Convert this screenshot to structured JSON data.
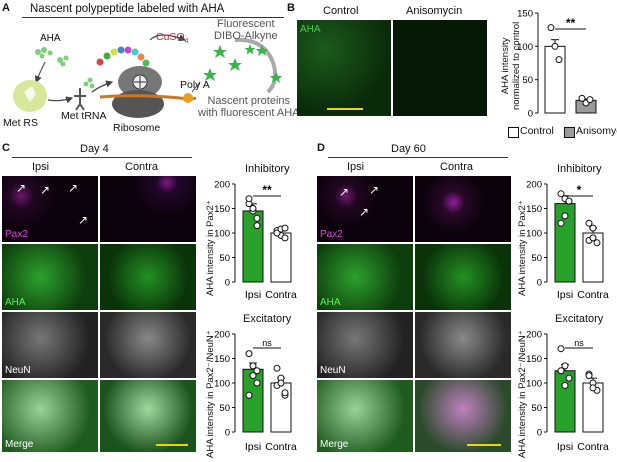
{
  "panels": {
    "A": "A",
    "B": "B",
    "C": "C",
    "D": "D"
  },
  "schematic": {
    "title": "Nascent polypeptide labeled with AHA",
    "aha": "AHA",
    "met_rs": "Met RS",
    "met_trna": "Met tRNA",
    "ribosome": "Ribosome",
    "poly_a": "Poly A",
    "cuso": "CuSO",
    "cuso_sub": "4",
    "dye_line1": "Fluorescent",
    "dye_line2": "DIBO-Alkyne",
    "nascent_line1": "Nascent proteins",
    "nascent_line2": "with fluorescent AHA"
  },
  "panelB": {
    "control": "Control",
    "anisomycin": "Anisomycin",
    "aha": "AHA",
    "ylabel1": "AHA intensity",
    "ylabel2": "normalized to control",
    "sig": "**",
    "legend": [
      "Control",
      "Anisomycin"
    ]
  },
  "panelC": {
    "day": "Day 4",
    "ipsi": "Ipsi",
    "contra": "Contra",
    "rows": [
      "Pax2",
      "AHA",
      "NeuN",
      "Merge"
    ],
    "inhibitory": "Inhibitory",
    "excitatory": "Excitatory",
    "ylabel_inh": "AHA intensity in Pax2⁺",
    "ylabel_exc": "AHA intensity in Pax2⁻/NeuN⁺",
    "sig_inh": "**",
    "sig_exc": "ns"
  },
  "panelD": {
    "day": "Day 60",
    "ipsi": "Ipsi",
    "contra": "Contra",
    "rows": [
      "Pax2",
      "AHA",
      "NeuN",
      "Merge"
    ],
    "inhibitory": "Inhibitory",
    "excitatory": "Excitatory",
    "ylabel_inh": "AHA intensity in Pax2⁺",
    "ylabel_exc": "AHA intensity in Pax2⁻/NeuN⁺",
    "sig_inh": "*",
    "sig_exc": "ns"
  },
  "colors": {
    "control_bar": "#ffffff",
    "anisomycin_bar": "#9a9a9a",
    "ipsi_bar": "#27a12a",
    "contra_bar": "#ffffff",
    "pax2": "#e020e0",
    "aha": "#3fd23f"
  },
  "chart_data": [
    {
      "id": "B",
      "type": "bar",
      "categories": [
        "Control",
        "Anisomycin"
      ],
      "values": [
        100,
        19
      ],
      "points": [
        [
          128,
          100,
          80
        ],
        [
          22,
          15,
          20
        ]
      ],
      "ylim": [
        0,
        150
      ],
      "yticks": [
        0,
        50,
        100,
        150
      ]
    },
    {
      "id": "C-inh",
      "type": "bar",
      "categories": [
        "Ipsi",
        "Contra"
      ],
      "values": [
        145,
        100
      ],
      "points": [
        [
          160,
          145,
          130,
          170,
          150,
          115
        ],
        [
          105,
          95,
          90,
          100,
          108,
          110
        ]
      ],
      "ylim": [
        0,
        200
      ],
      "yticks": [
        0,
        50,
        100,
        150,
        200
      ]
    },
    {
      "id": "C-exc",
      "type": "bar",
      "categories": [
        "Ipsi",
        "Contra"
      ],
      "values": [
        128,
        100
      ],
      "points": [
        [
          75,
          115,
          125,
          160,
          135,
          100
        ],
        [
          95,
          110,
          75,
          130,
          100,
          80
        ]
      ],
      "ylim": [
        0,
        200
      ],
      "yticks": [
        0,
        50,
        100,
        150,
        200
      ]
    },
    {
      "id": "D-inh",
      "type": "bar",
      "categories": [
        "Ipsi",
        "Contra"
      ],
      "values": [
        160,
        100
      ],
      "points": [
        [
          180,
          170,
          165,
          120,
          135
        ],
        [
          120,
          110,
          80,
          85,
          90
        ]
      ],
      "ylim": [
        0,
        200
      ],
      "yticks": [
        0,
        50,
        100,
        150,
        200
      ]
    },
    {
      "id": "D-exc",
      "type": "bar",
      "categories": [
        "Ipsi",
        "Contra"
      ],
      "values": [
        125,
        100
      ],
      "points": [
        [
          170,
          135,
          110,
          125,
          95
        ],
        [
          118,
          100,
          85,
          115,
          90
        ]
      ],
      "ylim": [
        0,
        200
      ],
      "yticks": [
        0,
        50,
        100,
        150,
        200
      ]
    }
  ]
}
